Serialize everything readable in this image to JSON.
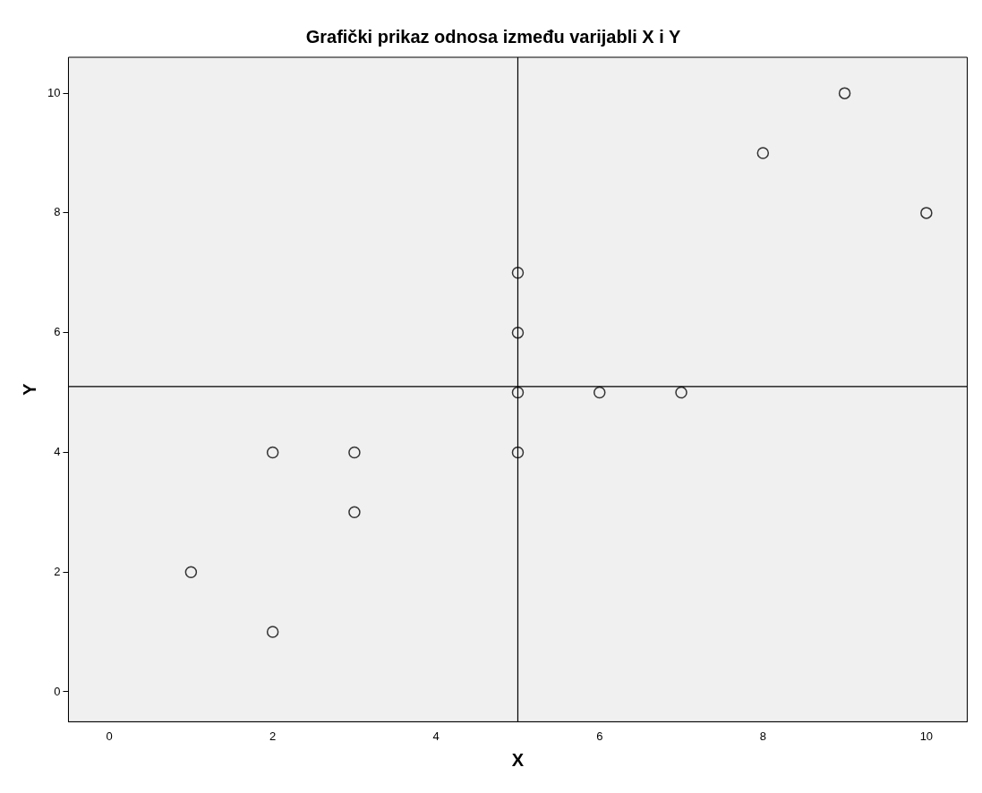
{
  "chart_data": {
    "type": "scatter",
    "title": "Grafički prikaz odnosa između varijabli X i Y",
    "xlabel": "X",
    "ylabel": "Y",
    "x": [
      1,
      2,
      2,
      3,
      3,
      5,
      5,
      5,
      5,
      6,
      7,
      8,
      9,
      10
    ],
    "values": [
      2,
      4,
      1,
      4,
      3,
      4,
      5,
      6,
      7,
      5,
      5,
      9,
      10,
      8
    ],
    "color": "#333333",
    "marker": "circle",
    "xlim": [
      -0.5,
      10.5
    ],
    "xticks": [
      0,
      2,
      4,
      6,
      8,
      10
    ],
    "ylim": [
      -0.5,
      10.6
    ],
    "yticks": [
      0,
      2,
      4,
      6,
      8,
      10
    ],
    "grid": false,
    "legend": false,
    "ref_lines": [
      {
        "axis": "x",
        "value": 5,
        "color": "#000000"
      },
      {
        "axis": "y",
        "value": 5.1,
        "color": "#000000"
      }
    ]
  }
}
